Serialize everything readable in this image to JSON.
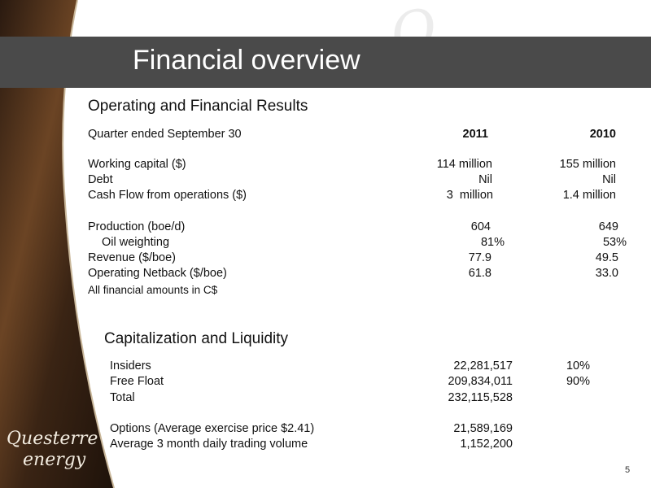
{
  "title": "Financial overview",
  "operating": {
    "heading": "Operating and Financial Results",
    "header": [
      "Quarter ended September 30",
      "2011",
      "2010"
    ],
    "rows": [
      [
        "Working capital ($)",
        "114 million",
        "155 million"
      ],
      [
        "Debt",
        "Nil",
        "Nil"
      ],
      [
        "Cash Flow from operations ($)",
        "3  million",
        "1.4 million"
      ],
      [
        "Production (boe/d)",
        "604",
        "649"
      ],
      [
        "Oil weighting",
        "81%",
        "53%"
      ],
      [
        "Revenue ($/boe)",
        "77.9",
        "49.5"
      ],
      [
        "Operating Netback ($/boe)",
        "61.8",
        "33.0"
      ]
    ],
    "note": "All financial amounts in C$"
  },
  "capitalization": {
    "heading": "Capitalization and Liquidity",
    "rows": [
      [
        "Insiders",
        "22,281,517",
        "10%"
      ],
      [
        "Free Float",
        "209,834,011",
        "90%"
      ],
      [
        "Total",
        "232,115,528"
      ],
      [
        "Options (Average exercise price $2.41)",
        "21,589,169"
      ],
      [
        "Average 3 month daily trading volume",
        "1,152,200"
      ]
    ]
  },
  "logo": {
    "line1": "Questerre",
    "line2": "energy"
  },
  "page_number": "5"
}
